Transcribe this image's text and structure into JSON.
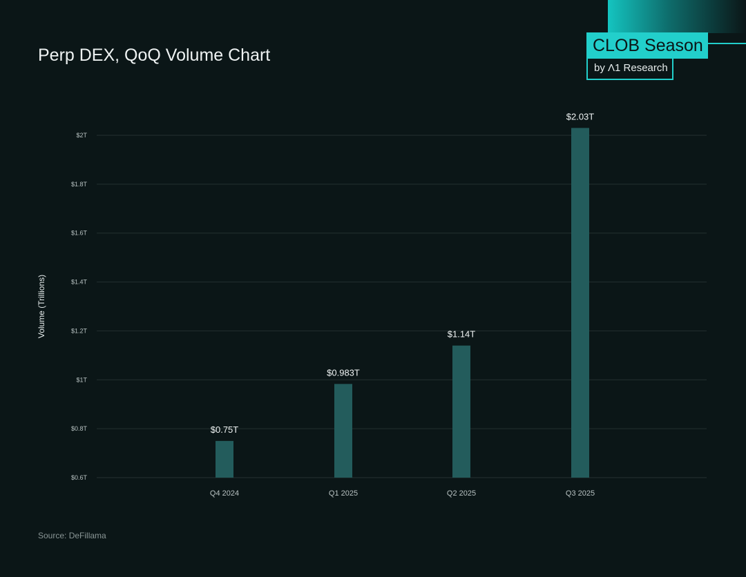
{
  "header": {
    "title": "Perp DEX, QoQ Volume Chart"
  },
  "logo": {
    "main": "CLOB Season",
    "sub": "by Λ1 Research"
  },
  "footer": {
    "source": "Source: DeFillama"
  },
  "colors": {
    "background": "#0b1617",
    "bar": "#235c5c",
    "accent": "#22cfcb",
    "grid": "#243031"
  },
  "chart_data": {
    "type": "bar",
    "title": "Perp DEX, QoQ Volume Chart",
    "xlabel": "",
    "ylabel": "Volume (Trillions)",
    "categories": [
      "Q4 2024",
      "Q1 2025",
      "Q2 2025",
      "Q3 2025"
    ],
    "values": [
      0.75,
      0.983,
      1.14,
      2.03
    ],
    "data_labels": [
      "$0.75T",
      "$0.983T",
      "$1.14T",
      "$2.03T"
    ],
    "ylim": [
      0.6,
      2.0
    ],
    "yticks": [
      0.6,
      0.8,
      1.0,
      1.2,
      1.4,
      1.6,
      1.8,
      2.0
    ],
    "ytick_labels": [
      "$0.6T",
      "$0.8T",
      "$1T",
      "$1.2T",
      "$1.4T",
      "$1.6T",
      "$1.8T",
      "$2T"
    ],
    "grid": true,
    "legend": "none"
  }
}
